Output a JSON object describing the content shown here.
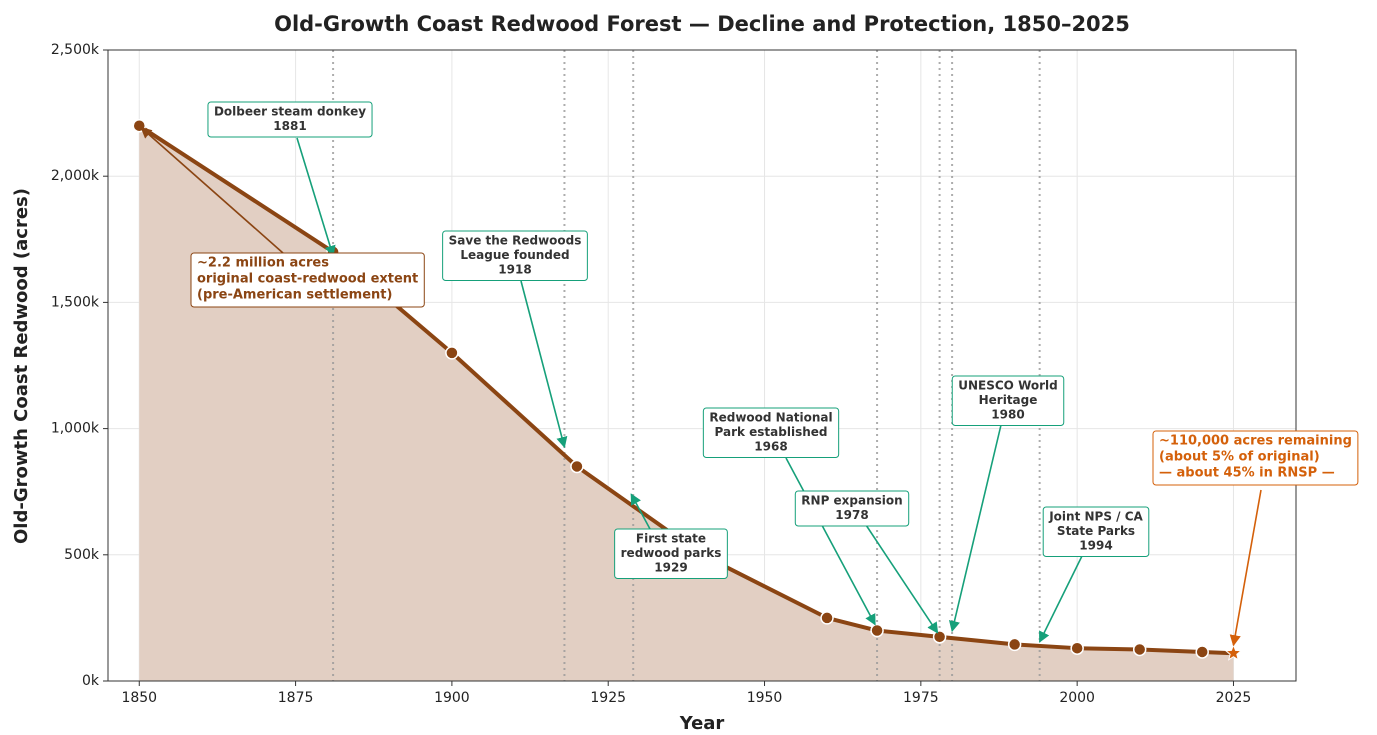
{
  "chart_data": {
    "type": "area-line",
    "title": "Old-Growth Coast Redwood Forest — Decline and Protection, 1850–2025",
    "xlabel": "Year",
    "ylabel": "Old-Growth Coast Redwood (acres)",
    "x": [
      1850,
      1881,
      1900,
      1920,
      1940,
      1960,
      1968,
      1978,
      1990,
      2000,
      2010,
      2020,
      2025
    ],
    "values": [
      2200000,
      1700000,
      1300000,
      850000,
      500000,
      250000,
      200000,
      175000,
      145000,
      130000,
      125000,
      115000,
      110000
    ],
    "color": "#8b4513",
    "fill_color": "#e2cfc3",
    "highlight_color": "#d4600a",
    "event_color": "#16a07a",
    "xlim": [
      1845,
      2035
    ],
    "xticks": [
      1850,
      1875,
      1900,
      1925,
      1950,
      1975,
      2000,
      2025
    ],
    "ylim": [
      0,
      2500000
    ],
    "yticks": [
      {
        "value": 0,
        "label": "0k"
      },
      {
        "value": 500000,
        "label": "500k"
      },
      {
        "value": 1000000,
        "label": "1,000k"
      },
      {
        "value": 1500000,
        "label": "1,500k"
      },
      {
        "value": 2000000,
        "label": "2,000k"
      },
      {
        "value": 2500000,
        "label": "2,500k"
      }
    ],
    "grid": true,
    "events": [
      {
        "lines": [
          "Dolbeer steam donkey"
        ],
        "year": 1881
      },
      {
        "lines": [
          "Save the Redwoods",
          "League founded"
        ],
        "year": 1918
      },
      {
        "lines": [
          "First state",
          "redwood parks"
        ],
        "year": 1929
      },
      {
        "lines": [
          "Redwood National",
          "Park established"
        ],
        "year": 1968
      },
      {
        "lines": [
          "RNP expansion"
        ],
        "year": 1978
      },
      {
        "lines": [
          "UNESCO World",
          "Heritage"
        ],
        "year": 1980
      },
      {
        "lines": [
          "Joint NPS / CA",
          "State Parks"
        ],
        "year": 1994
      }
    ],
    "notes": [
      {
        "lines": [
          "~2.2 million acres",
          "original coast-redwood extent",
          "(pre-American settlement)"
        ],
        "year": 1850,
        "color": "#8b4513"
      },
      {
        "lines": [
          "~110,000 acres remaining",
          "(about 5% of original)",
          "— about 45% in RNSP —"
        ],
        "year": 2025,
        "color": "#d4600a"
      }
    ]
  }
}
